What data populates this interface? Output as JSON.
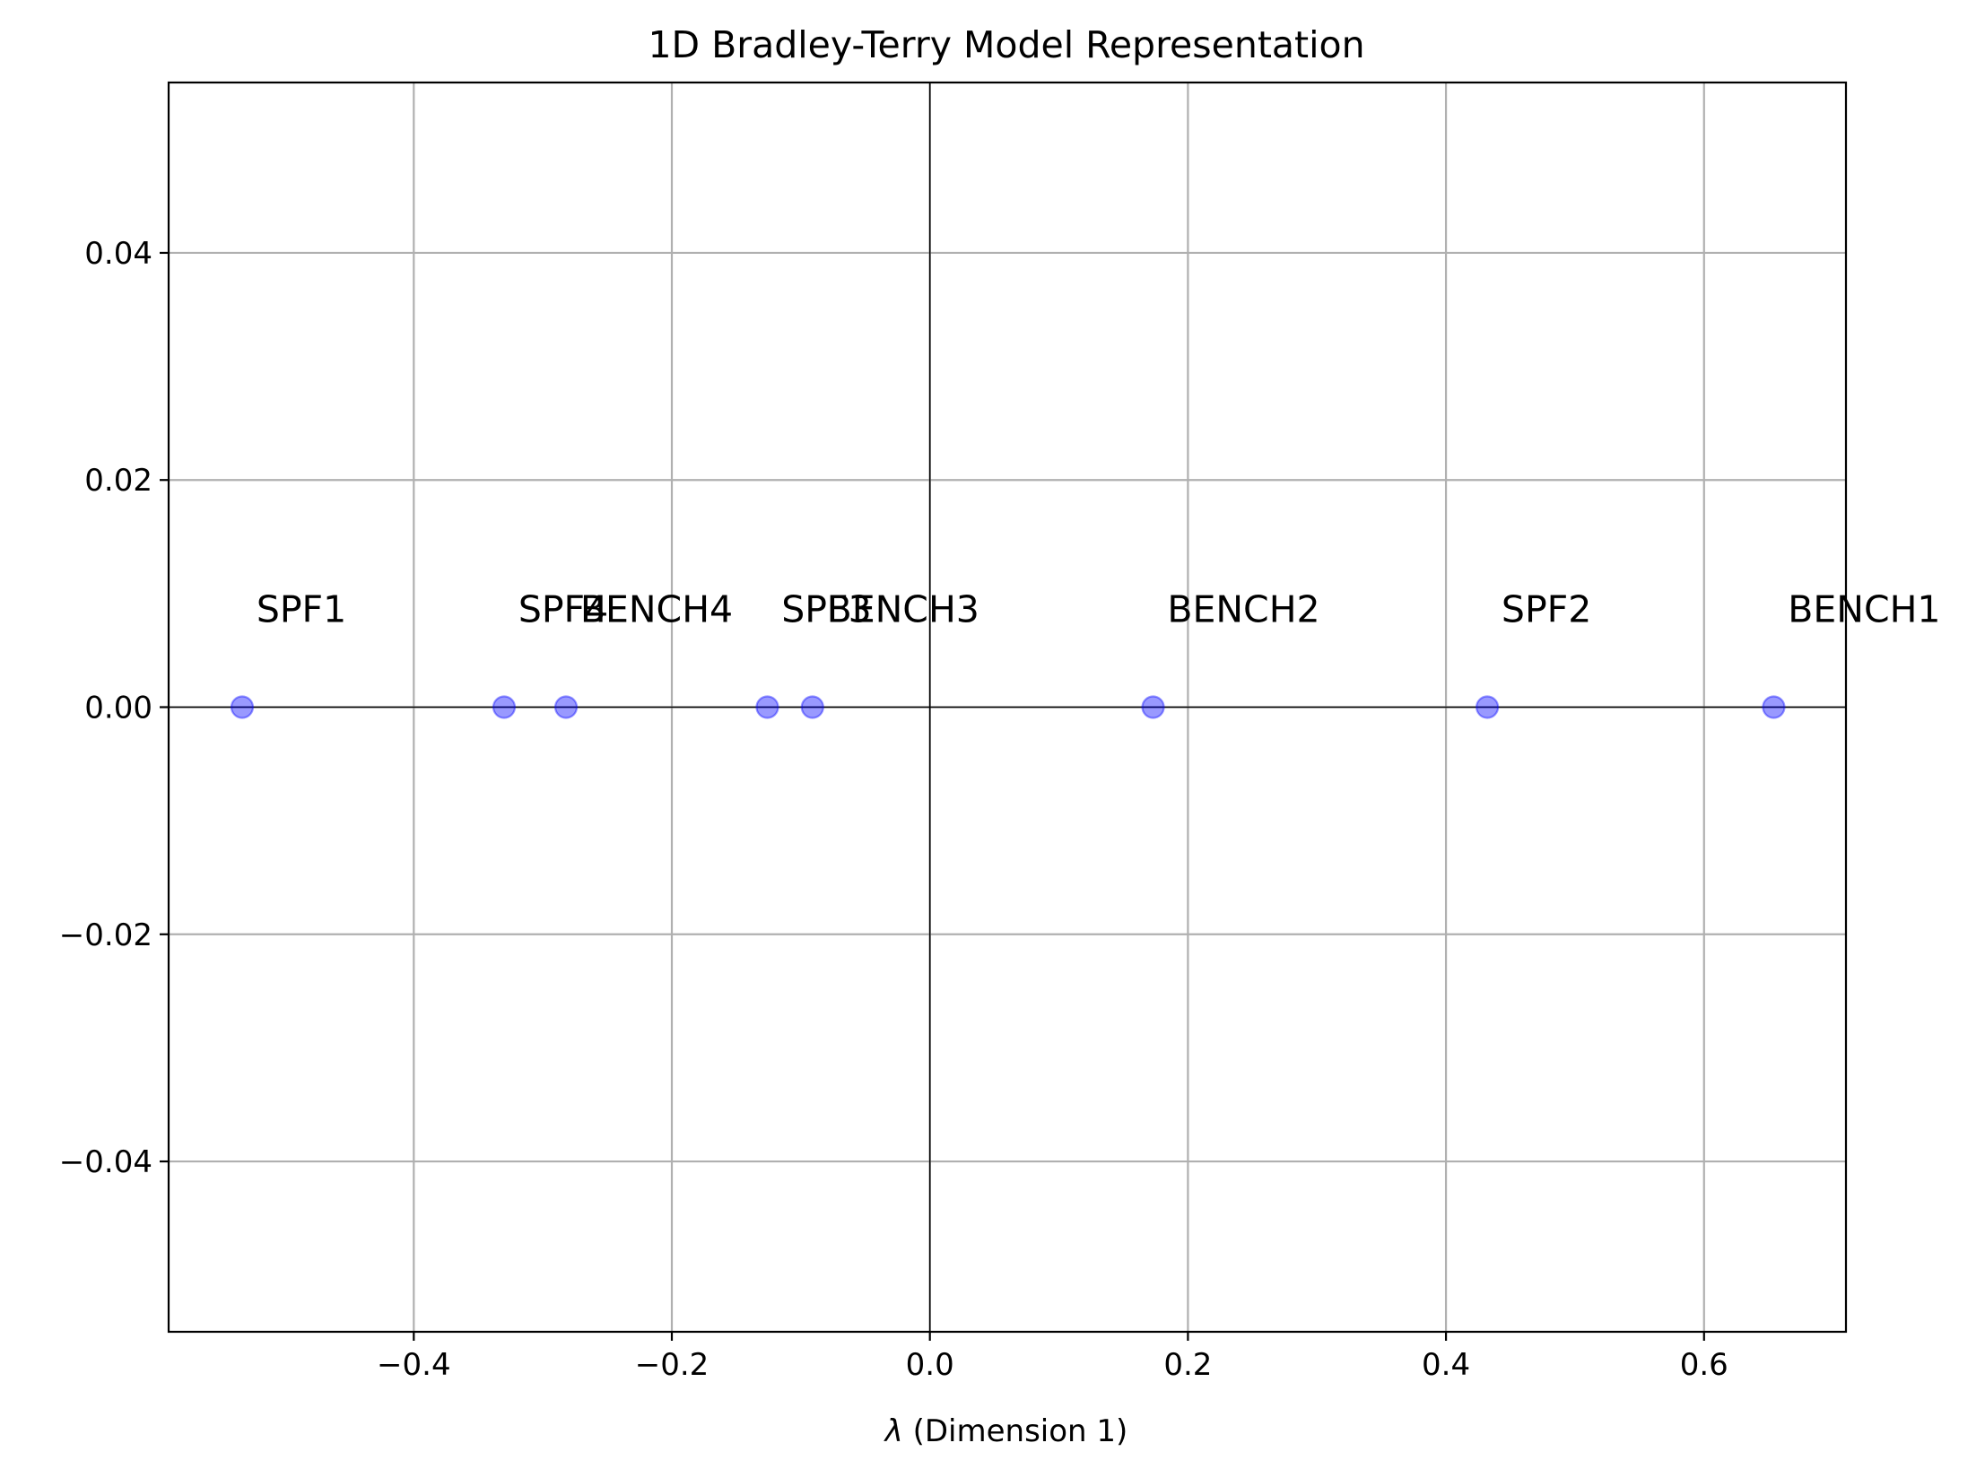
{
  "chart_data": {
    "type": "scatter",
    "title": "1D Bradley-Terry Model Representation",
    "xlabel_symbol": "λ",
    "xlabel_rest": " (Dimension 1)",
    "ylabel": "",
    "xlim": [
      -0.59,
      0.71
    ],
    "ylim": [
      -0.055,
      0.055
    ],
    "xticks": [
      -0.4,
      -0.2,
      0.0,
      0.2,
      0.4,
      0.6
    ],
    "xtick_labels": [
      "−0.4",
      "−0.2",
      "0.0",
      "0.2",
      "0.4",
      "0.6"
    ],
    "yticks": [
      -0.04,
      -0.02,
      0.0,
      0.02,
      0.04
    ],
    "ytick_labels": [
      "−0.04",
      "−0.02",
      "0.00",
      "0.02",
      "0.04"
    ],
    "grid": true,
    "reference_lines": {
      "x": 0.0,
      "y": 0.0
    },
    "label_offset": {
      "x": 0.011,
      "y": 0.0075
    },
    "marker_color": "#0000ff",
    "marker_alpha": 0.4,
    "points": [
      {
        "label": "SPF1",
        "x": -0.533,
        "y": 0.0
      },
      {
        "label": "SPF4",
        "x": -0.33,
        "y": 0.0
      },
      {
        "label": "BENCH4",
        "x": -0.282,
        "y": 0.0
      },
      {
        "label": "SPF3",
        "x": -0.126,
        "y": 0.0
      },
      {
        "label": "BENCH3",
        "x": -0.091,
        "y": 0.0
      },
      {
        "label": "BENCH2",
        "x": 0.173,
        "y": 0.0
      },
      {
        "label": "SPF2",
        "x": 0.432,
        "y": 0.0
      },
      {
        "label": "BENCH1",
        "x": 0.654,
        "y": 0.0
      }
    ]
  }
}
